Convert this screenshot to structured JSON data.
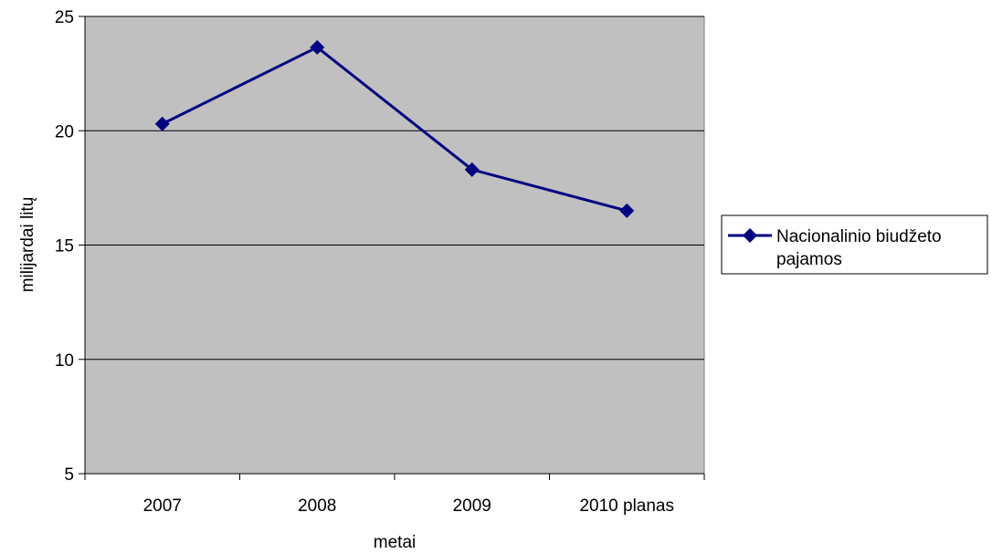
{
  "chart_data": {
    "type": "line",
    "title": "",
    "xlabel": "metai",
    "ylabel": "milijardai litų",
    "categories": [
      "2007",
      "2008",
      "2009",
      "2010 planas"
    ],
    "series": [
      {
        "name": "Nacionalinio biudžeto pajamos",
        "values": [
          20.3,
          23.65,
          18.3,
          16.5
        ],
        "color": "#000080"
      }
    ],
    "ylim": [
      5,
      25
    ],
    "yticks": [
      5,
      10,
      15,
      20,
      25
    ],
    "grid": true,
    "plot_background": "#c0c0c0",
    "legend_position": "right"
  }
}
